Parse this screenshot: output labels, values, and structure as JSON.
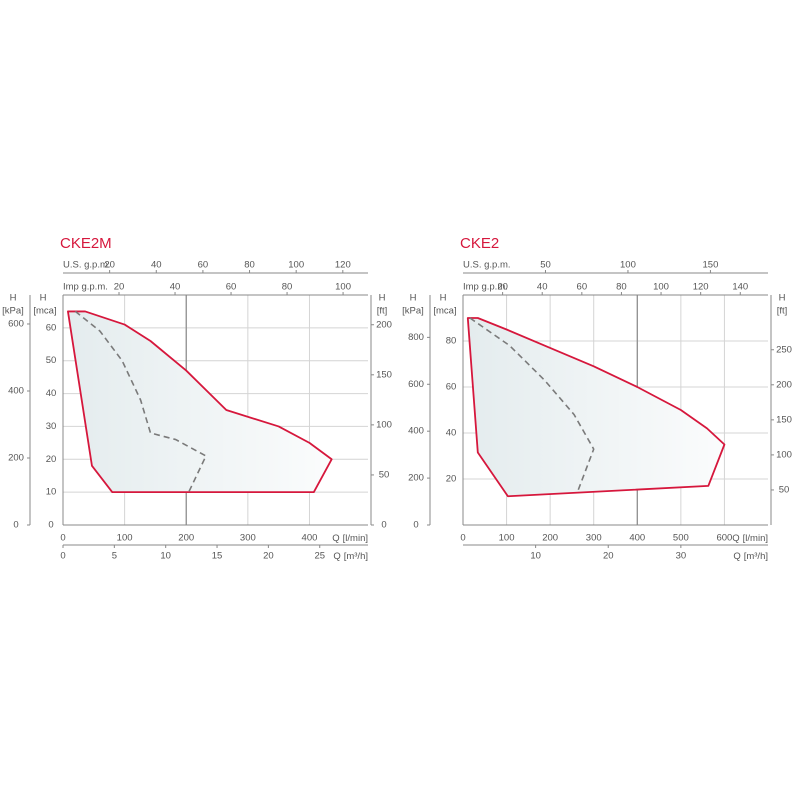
{
  "chart_data": [
    {
      "type": "envelope",
      "title": "CKE2M",
      "title_color": "#d6173c",
      "xlabel": "Q",
      "xunit": "[l/min]",
      "xlim": [
        0,
        495
      ],
      "xticks": [
        0,
        100,
        200,
        300,
        400
      ],
      "ylabel": "H",
      "yunit": "[mca]",
      "ylim": [
        0,
        70
      ],
      "yticks": [
        0,
        10,
        20,
        30,
        40,
        50,
        60
      ],
      "grid": true,
      "marked_xline": 200,
      "extra_axes": [
        {
          "side": "top",
          "name": "U.S. g.p.m.",
          "lim": [
            0,
            130.8
          ],
          "ticks": [
            20,
            40,
            60,
            80,
            100,
            120
          ]
        },
        {
          "side": "top",
          "name": "Imp g.p.m.",
          "lim": [
            0,
            108.9
          ],
          "ticks": [
            20,
            40,
            60,
            80,
            100
          ]
        },
        {
          "side": "bottom",
          "name": "Q",
          "unit": "[m³/h]",
          "lim": [
            0,
            29.7
          ],
          "ticks": [
            0,
            5,
            10,
            15,
            20,
            25
          ]
        },
        {
          "side": "left",
          "name": "H",
          "unit": "[kPa]",
          "lim": [
            0,
            686.5
          ],
          "ticks": [
            0,
            200,
            400,
            600
          ]
        },
        {
          "side": "right",
          "name": "H",
          "unit": "[ft]",
          "lim": [
            0,
            229.7
          ],
          "ticks": [
            0,
            50,
            100,
            150,
            200
          ]
        }
      ],
      "series": [
        {
          "color": "#d6173c",
          "style": "solid",
          "closed": true,
          "fill": "#e4ecee",
          "x": [
            8,
            36,
            100,
            142,
            200,
            265,
            350,
            400,
            436,
            407,
            80,
            47
          ],
          "values": [
            65,
            65,
            61,
            56,
            47,
            35,
            30,
            25,
            20,
            10,
            10,
            18
          ]
        },
        {
          "color": "#7a7a7a",
          "style": "dashed",
          "closed": false,
          "x": [
            20,
            60,
            96,
            126,
            142,
            183,
            232,
            204
          ],
          "values": [
            65,
            59,
            50,
            38,
            28,
            26,
            21,
            10
          ]
        }
      ]
    },
    {
      "type": "envelope",
      "title": "CKE2",
      "title_color": "#d6173c",
      "xlabel": "Q",
      "xunit": "[l/min]",
      "xlim": [
        0,
        700
      ],
      "xticks": [
        0,
        100,
        200,
        300,
        400,
        500,
        600
      ],
      "ylabel": "H",
      "yunit": "[mca]",
      "ylim": [
        0,
        100
      ],
      "yticks": [
        20,
        40,
        60,
        80
      ],
      "grid": true,
      "marked_xline": 400,
      "extra_axes": [
        {
          "side": "top",
          "name": "U.S. g.p.m.",
          "lim": [
            0,
            184.9
          ],
          "ticks": [
            50,
            100,
            150
          ]
        },
        {
          "side": "top",
          "name": "Imp g.p.m.",
          "lim": [
            0,
            154
          ],
          "ticks": [
            20,
            40,
            60,
            80,
            100,
            120,
            140
          ]
        },
        {
          "side": "bottom",
          "name": "Q",
          "unit": "[m³/h]",
          "lim": [
            0,
            42
          ],
          "ticks": [
            10,
            20,
            30
          ]
        },
        {
          "side": "left",
          "name": "H",
          "unit": "[kPa]",
          "lim": [
            0,
            980.7
          ],
          "ticks": [
            0,
            200,
            400,
            600,
            800
          ]
        },
        {
          "side": "right",
          "name": "H",
          "unit": "[ft]",
          "lim": [
            0,
            328.1
          ],
          "ticks": [
            50,
            100,
            150,
            200,
            250
          ]
        }
      ],
      "series": [
        {
          "color": "#d6173c",
          "style": "solid",
          "closed": true,
          "fill": "#e4ecee",
          "x": [
            11,
            34,
            100,
            200,
            300,
            400,
            500,
            560,
            600,
            563,
            103,
            34
          ],
          "values": [
            90,
            90,
            85,
            77,
            69,
            60,
            50,
            42,
            35,
            17,
            12.5,
            31.5
          ]
        },
        {
          "color": "#7a7a7a",
          "style": "dashed",
          "closed": false,
          "x": [
            16,
            107,
            187,
            255,
            300,
            262
          ],
          "values": [
            90,
            78,
            63,
            48,
            33,
            14
          ]
        }
      ]
    }
  ]
}
